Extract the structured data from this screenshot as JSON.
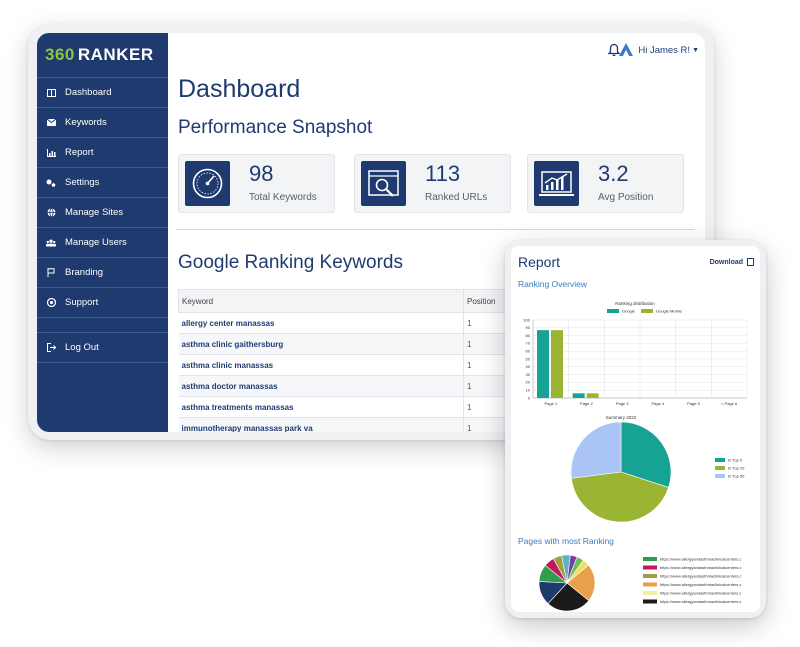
{
  "brand": {
    "logo_number": "360",
    "logo_text": "RANKER",
    "accent": "#8cc63f",
    "primary": "#1e3a6e"
  },
  "sidebar": {
    "items": [
      {
        "label": "Dashboard",
        "icon": "dashboard-icon"
      },
      {
        "label": "Keywords",
        "icon": "keywords-icon"
      },
      {
        "label": "Report",
        "icon": "report-icon"
      },
      {
        "label": "Settings",
        "icon": "settings-icon"
      },
      {
        "label": "Manage Sites",
        "icon": "globe-icon"
      },
      {
        "label": "Manage Users",
        "icon": "users-icon"
      },
      {
        "label": "Branding",
        "icon": "flag-icon"
      },
      {
        "label": "Support",
        "icon": "support-icon"
      }
    ],
    "logout": "Log Out"
  },
  "header": {
    "user_greeting": "Hi James R!"
  },
  "main": {
    "title": "Dashboard",
    "snapshot_title": "Performance Snapshot",
    "cards": [
      {
        "value": "98",
        "label": "Total Keywords",
        "icon": "speedometer-icon"
      },
      {
        "value": "113",
        "label": "Ranked URLs",
        "icon": "search-browser-icon"
      },
      {
        "value": "3.2",
        "label": "Avg Position",
        "icon": "growth-chart-icon"
      }
    ],
    "keywords_title": "Google Ranking Keywords",
    "table": {
      "columns": [
        "Keyword",
        "Position"
      ],
      "rows": [
        [
          "allergy center manassas",
          "1"
        ],
        [
          "asthma clinic gaithersburg",
          "1"
        ],
        [
          "asthma clinic manassas",
          "1"
        ],
        [
          "asthma doctor manassas",
          "1"
        ],
        [
          "asthma treatments manassas",
          "1"
        ],
        [
          "immunotherapy manassas park va",
          "1"
        ]
      ]
    }
  },
  "report": {
    "title": "Report",
    "download": "Download",
    "ranking_overview": "Ranking Overview",
    "pages_most_ranking": "Pages with most Ranking",
    "legend_urls": [
      "https://www.allergyandasthmaclinicalcenters.c",
      "https://www.allergyandasthmaclinicalcenters.c",
      "https://www.allergyandasthmaclinicalcenters.c",
      "https://www.allergyandasthmaclinicalcenters.c",
      "https://www.allergyandasthmaclinicalcenters.c",
      "https://www.allergyandasthmaclinicalcenters.c"
    ],
    "legend_url_colors": [
      "#2e9e4e",
      "#c2185b",
      "#a0a040",
      "#e8a04a",
      "#f0f0a0",
      "#1a1a1a"
    ]
  },
  "chart_data": [
    {
      "type": "bar",
      "title": "Ranking distribution",
      "categories": [
        "Page 1",
        "Page 2",
        "Page 3",
        "Page 4",
        "Page 5",
        "> Page 6"
      ],
      "series": [
        {
          "name": "Google",
          "values": [
            87,
            6,
            0,
            0,
            0,
            0
          ],
          "color": "#16a394"
        },
        {
          "name": "Google Mobile",
          "values": [
            87,
            6,
            0,
            0,
            0,
            0
          ],
          "color": "#9ab534"
        }
      ],
      "ylim": [
        0,
        100
      ],
      "yticks": [
        0,
        10,
        20,
        30,
        40,
        50,
        60,
        70,
        80,
        90,
        100
      ],
      "legend": "top"
    },
    {
      "type": "pie",
      "title": "Summary 2022",
      "slices": [
        {
          "name": "In Top 5",
          "value": 30,
          "color": "#16a394"
        },
        {
          "name": "In Top 10",
          "value": 43,
          "color": "#9ab534"
        },
        {
          "name": "In Top 50",
          "value": 27,
          "color": "#a9c4f5"
        }
      ],
      "legend": "right"
    },
    {
      "type": "pie",
      "slices": [
        {
          "value": 22,
          "color": "#e8a04a"
        },
        {
          "value": 26,
          "color": "#1a1a1a"
        },
        {
          "value": 14,
          "color": "#1e3a6e"
        },
        {
          "value": 10,
          "color": "#2e9e4e"
        },
        {
          "value": 6,
          "color": "#c2185b"
        },
        {
          "value": 5,
          "color": "#a0a040"
        },
        {
          "value": 5,
          "color": "#5fb0c9"
        },
        {
          "value": 4,
          "color": "#7a3e9e"
        },
        {
          "value": 4,
          "color": "#6bbf59"
        },
        {
          "value": 4,
          "color": "#f0e060"
        }
      ],
      "legend": "right"
    }
  ]
}
